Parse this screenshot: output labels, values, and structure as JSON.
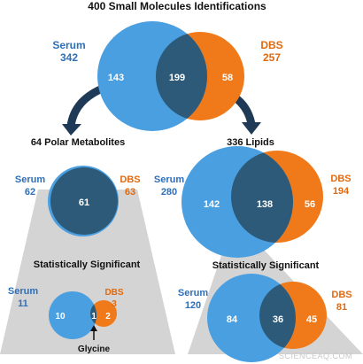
{
  "colors": {
    "serum": "#4a9fe0",
    "serum_text": "#2e6fb8",
    "dbs": "#f07a1a",
    "dbs_text": "#e06a10",
    "overlap": "#2c5a78",
    "trapezoid": "#d4d4d4",
    "arrow": "#1f3a56",
    "title": "#111111"
  },
  "top": {
    "title": "400 Small Molecules Identifications",
    "serum_label": "Serum",
    "serum_total": "342",
    "dbs_label": "DBS",
    "dbs_total": "257",
    "serum_only": "143",
    "both": "199",
    "dbs_only": "58"
  },
  "polar": {
    "title": "64 Polar Metabolites",
    "serum_label": "Serum",
    "serum_total": "62",
    "dbs_label": "DBS",
    "dbs_total": "63",
    "both": "61"
  },
  "lipids": {
    "title": "336 Lipids",
    "serum_label": "Serum",
    "serum_total": "280",
    "dbs_label": "DBS",
    "dbs_total": "194",
    "serum_only": "142",
    "both": "138",
    "dbs_only": "56"
  },
  "polar_sig": {
    "title": "Statistically Significant",
    "serum_label": "Serum",
    "serum_total": "11",
    "dbs_label": "DBS",
    "dbs_total": "3",
    "serum_only": "10",
    "both": "1",
    "dbs_only": "2",
    "annotation": "Glycine"
  },
  "lipid_sig": {
    "title": "Statistically Significant",
    "serum_label": "Serum",
    "serum_total": "120",
    "dbs_label": "DBS",
    "dbs_total": "81",
    "serum_only": "84",
    "both": "36",
    "dbs_only": "45"
  },
  "watermark": "SCIENCEAQ.COM"
}
